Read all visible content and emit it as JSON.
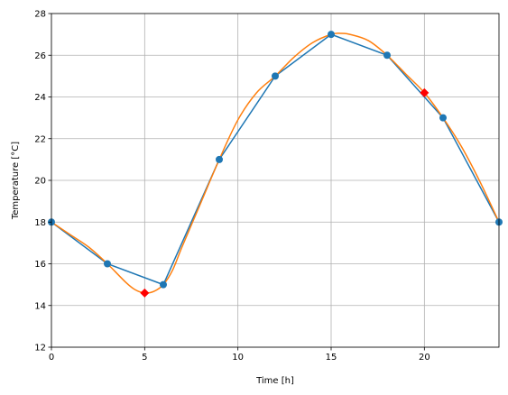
{
  "chart_data": {
    "type": "line",
    "xlabel": "Time [h]",
    "ylabel": "Temperature [°C]",
    "xlim": [
      0,
      24
    ],
    "ylim": [
      12,
      28
    ],
    "xticks": [
      0,
      5,
      10,
      15,
      20
    ],
    "yticks": [
      12,
      14,
      16,
      18,
      20,
      22,
      24,
      26,
      28
    ],
    "grid": true,
    "series": [
      {
        "style": "line-with-circle-markers",
        "color": "#1f77b4",
        "x": [
          0,
          3,
          6,
          9,
          12,
          15,
          18,
          21,
          24
        ],
        "y": [
          18,
          16,
          15,
          21,
          25,
          27,
          26,
          23,
          18
        ]
      },
      {
        "style": "smooth-curve",
        "color": "#ff7f0e",
        "x": [
          0,
          1,
          2,
          3,
          4,
          4.5,
          5,
          5.5,
          6,
          6.5,
          7,
          8,
          9,
          10,
          11,
          12,
          13,
          14,
          15,
          15.5,
          16,
          17,
          18,
          19,
          20,
          21,
          22,
          23,
          24
        ],
        "y": [
          18,
          17.4,
          16.8,
          16.0,
          15.1,
          14.75,
          14.6,
          14.68,
          15.0,
          15.7,
          16.8,
          18.9,
          21.0,
          22.9,
          24.2,
          25.0,
          25.9,
          26.6,
          27.0,
          27.05,
          27.0,
          26.7,
          26.0,
          25.1,
          24.2,
          23.0,
          21.6,
          19.9,
          18.0
        ]
      },
      {
        "style": "diamond-markers",
        "color": "#ff0000",
        "x": [
          5,
          20
        ],
        "y": [
          14.6,
          24.2
        ]
      }
    ]
  }
}
